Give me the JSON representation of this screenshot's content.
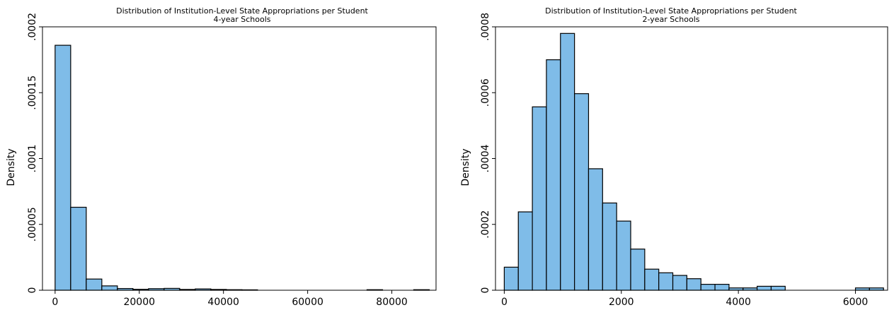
{
  "chart_data": [
    {
      "type": "bar",
      "title": "Distribution of Institution-Level State Appropriations per Student",
      "subtitle": "4-year Schools",
      "xlabel": "",
      "ylabel": "Density",
      "xlim": [
        -3000,
        90500
      ],
      "ylim": [
        0,
        0.0002
      ],
      "xticks": [
        0,
        20000,
        40000,
        60000,
        80000
      ],
      "xtick_labels": [
        "0",
        "20000",
        "40000",
        "60000",
        "80000"
      ],
      "yticks": [
        0,
        5e-05,
        0.0001,
        0.00015,
        0.0002
      ],
      "ytick_labels": [
        "0",
        ".00005",
        ".0001",
        ".00015",
        ".0002"
      ],
      "grid": false,
      "legend": "none",
      "bar_fill": "#7fbce8",
      "bar_edge": "#000000",
      "bins": [
        {
          "x0": 0,
          "x1": 3700,
          "value": 0.000186
        },
        {
          "x0": 3700,
          "x1": 7400,
          "value": 6.3e-05
        },
        {
          "x0": 7400,
          "x1": 11100,
          "value": 8.5e-06
        },
        {
          "x0": 11100,
          "x1": 14800,
          "value": 3.3e-06
        },
        {
          "x0": 14800,
          "x1": 18500,
          "value": 1.3e-06
        },
        {
          "x0": 18500,
          "x1": 22200,
          "value": 7e-07
        },
        {
          "x0": 22200,
          "x1": 25900,
          "value": 1.2e-06
        },
        {
          "x0": 25900,
          "x1": 29600,
          "value": 1.4e-06
        },
        {
          "x0": 29600,
          "x1": 33300,
          "value": 6e-07
        },
        {
          "x0": 33300,
          "x1": 37000,
          "value": 1e-06
        },
        {
          "x0": 37000,
          "x1": 40700,
          "value": 6e-07
        },
        {
          "x0": 40700,
          "x1": 44400,
          "value": 4e-07
        },
        {
          "x0": 44400,
          "x1": 48100,
          "value": 3e-07
        },
        {
          "x0": 74100,
          "x1": 77800,
          "value": 4e-07
        },
        {
          "x0": 85200,
          "x1": 88900,
          "value": 4e-07
        }
      ]
    },
    {
      "type": "bar",
      "title": "Distribution of Institution-Level State Appropriations per Student",
      "subtitle": "2-year Schools",
      "xlabel": "",
      "ylabel": "Density",
      "xlim": [
        -150,
        6550
      ],
      "ylim": [
        0,
        0.0008
      ],
      "xticks": [
        0,
        2000,
        4000,
        6000
      ],
      "xtick_labels": [
        "0",
        "2000",
        "4000",
        "6000"
      ],
      "yticks": [
        0,
        0.0002,
        0.0004,
        0.0006,
        0.0008
      ],
      "ytick_labels": [
        "0",
        ".0002",
        ".0004",
        ".0006",
        ".0008"
      ],
      "grid": false,
      "legend": "none",
      "bar_fill": "#7fbce8",
      "bar_edge": "#000000",
      "bins": [
        {
          "x0": 0,
          "x1": 240,
          "value": 7e-05
        },
        {
          "x0": 240,
          "x1": 480,
          "value": 0.000238
        },
        {
          "x0": 480,
          "x1": 720,
          "value": 0.000557
        },
        {
          "x0": 720,
          "x1": 960,
          "value": 0.0007
        },
        {
          "x0": 960,
          "x1": 1200,
          "value": 0.00078
        },
        {
          "x0": 1200,
          "x1": 1440,
          "value": 0.000597
        },
        {
          "x0": 1440,
          "x1": 1680,
          "value": 0.000369
        },
        {
          "x0": 1680,
          "x1": 1920,
          "value": 0.000265
        },
        {
          "x0": 1920,
          "x1": 2160,
          "value": 0.00021
        },
        {
          "x0": 2160,
          "x1": 2400,
          "value": 0.000125
        },
        {
          "x0": 2400,
          "x1": 2640,
          "value": 6.4e-05
        },
        {
          "x0": 2640,
          "x1": 2880,
          "value": 5.3e-05
        },
        {
          "x0": 2880,
          "x1": 3120,
          "value": 4.5e-05
        },
        {
          "x0": 3120,
          "x1": 3360,
          "value": 3.5e-05
        },
        {
          "x0": 3360,
          "x1": 3600,
          "value": 1.8e-05
        },
        {
          "x0": 3600,
          "x1": 3840,
          "value": 1.8e-05
        },
        {
          "x0": 3840,
          "x1": 4080,
          "value": 7e-06
        },
        {
          "x0": 4080,
          "x1": 4320,
          "value": 7e-06
        },
        {
          "x0": 4320,
          "x1": 4560,
          "value": 1.2e-05
        },
        {
          "x0": 4560,
          "x1": 4800,
          "value": 1.2e-05
        },
        {
          "x0": 6000,
          "x1": 6240,
          "value": 7e-06
        },
        {
          "x0": 6240,
          "x1": 6480,
          "value": 7e-06
        }
      ]
    }
  ]
}
